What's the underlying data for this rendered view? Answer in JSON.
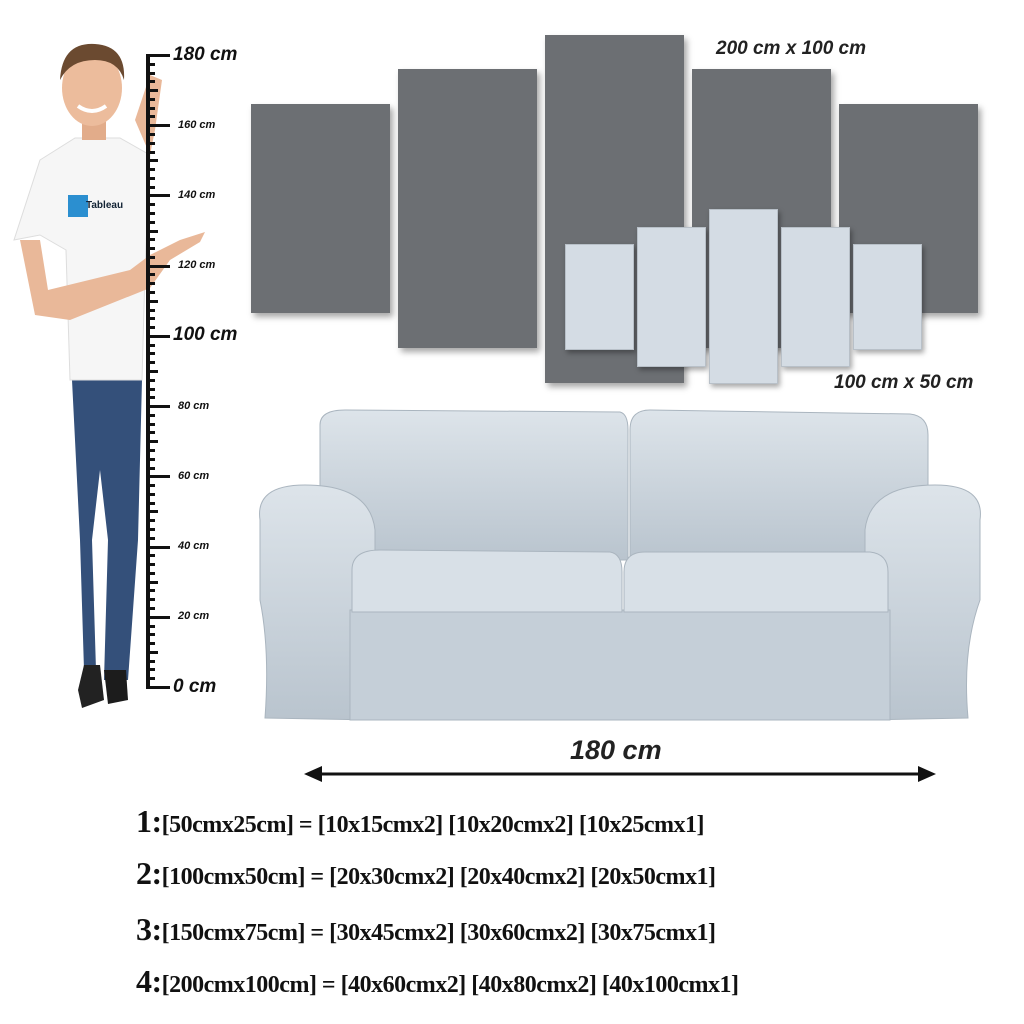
{
  "ruler": {
    "unit": "cm",
    "max": 180,
    "labels": [
      "180 cm",
      "160 cm",
      "140 cm",
      "120 cm",
      "100 cm",
      "80 cm",
      "60 cm",
      "40 cm",
      "20 cm",
      "0 cm"
    ],
    "label_values": [
      180,
      160,
      140,
      120,
      100,
      80,
      60,
      40,
      20,
      0
    ]
  },
  "shirt_logo": "Tableau",
  "large_set_label": "200 cm x 100 cm",
  "small_set_label": "100 cm x 50 cm",
  "sofa_width_label": "180 cm",
  "colors": {
    "large_panel": "#6c6f73",
    "small_panel": "#d4dce4",
    "sofa": "#cdd6de"
  },
  "specs": [
    {
      "num": "1:",
      "text": "[50cmx25cm] = [10x15cmx2] [10x20cmx2] [10x25cmx1]"
    },
    {
      "num": "2:",
      "text": "[100cmx50cm] = [20x30cmx2] [20x40cmx2] [20x50cmx1]"
    },
    {
      "num": "3:",
      "text": "[150cmx75cm] = [30x45cmx2] [30x60cmx2] [30x75cmx1]"
    },
    {
      "num": "4:",
      "text": "[200cmx100cm] = [40x60cmx2] [40x80cmx2] [40x100cmx1]"
    }
  ]
}
